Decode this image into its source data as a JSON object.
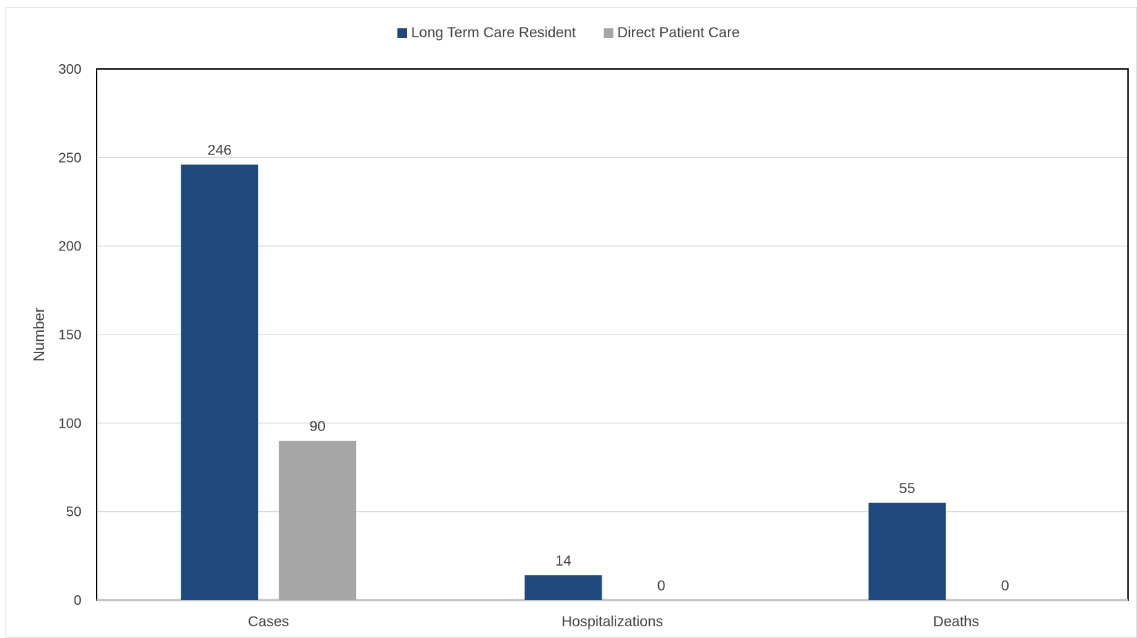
{
  "chart_data": {
    "type": "bar",
    "categories": [
      "Cases",
      "Hospitalizations",
      "Deaths"
    ],
    "series": [
      {
        "name": "Long Term Care Resident",
        "values": [
          246,
          14,
          55
        ],
        "color": "#1f497d"
      },
      {
        "name": "Direct Patient Care",
        "values": [
          90,
          0,
          0
        ],
        "color": "#a6a6a6"
      }
    ],
    "ylabel": "Number",
    "xlabel": "",
    "ylim": [
      0,
      300
    ],
    "yticks": [
      0,
      50,
      100,
      150,
      200,
      250,
      300
    ],
    "grid": true,
    "legend_position": "top-center",
    "data_labels": true
  }
}
